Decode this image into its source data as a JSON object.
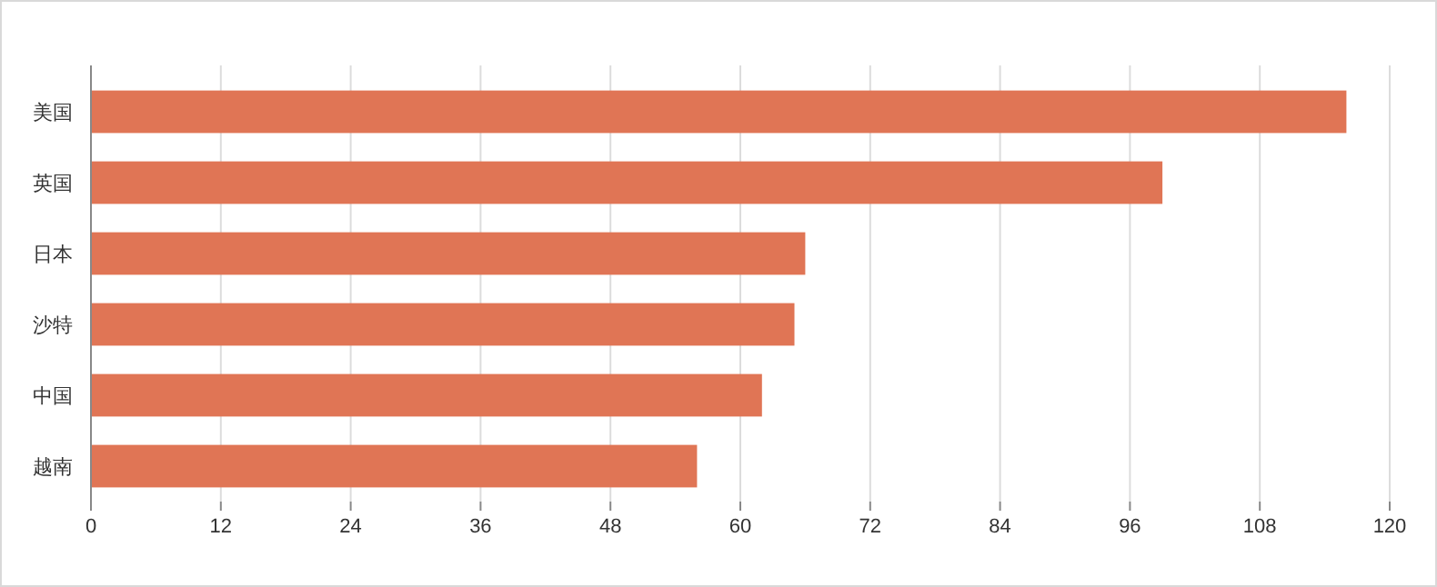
{
  "chart_data": {
    "type": "bar",
    "orientation": "horizontal",
    "categories": [
      "美国",
      "英国",
      "日本",
      "沙特",
      "中国",
      "越南"
    ],
    "values": [
      116,
      99,
      66,
      65,
      62,
      56
    ],
    "color": "#e07555",
    "xlim": [
      0,
      120
    ],
    "xticks": [
      0,
      12,
      24,
      36,
      48,
      60,
      72,
      84,
      96,
      108,
      120
    ],
    "grid": "x"
  }
}
